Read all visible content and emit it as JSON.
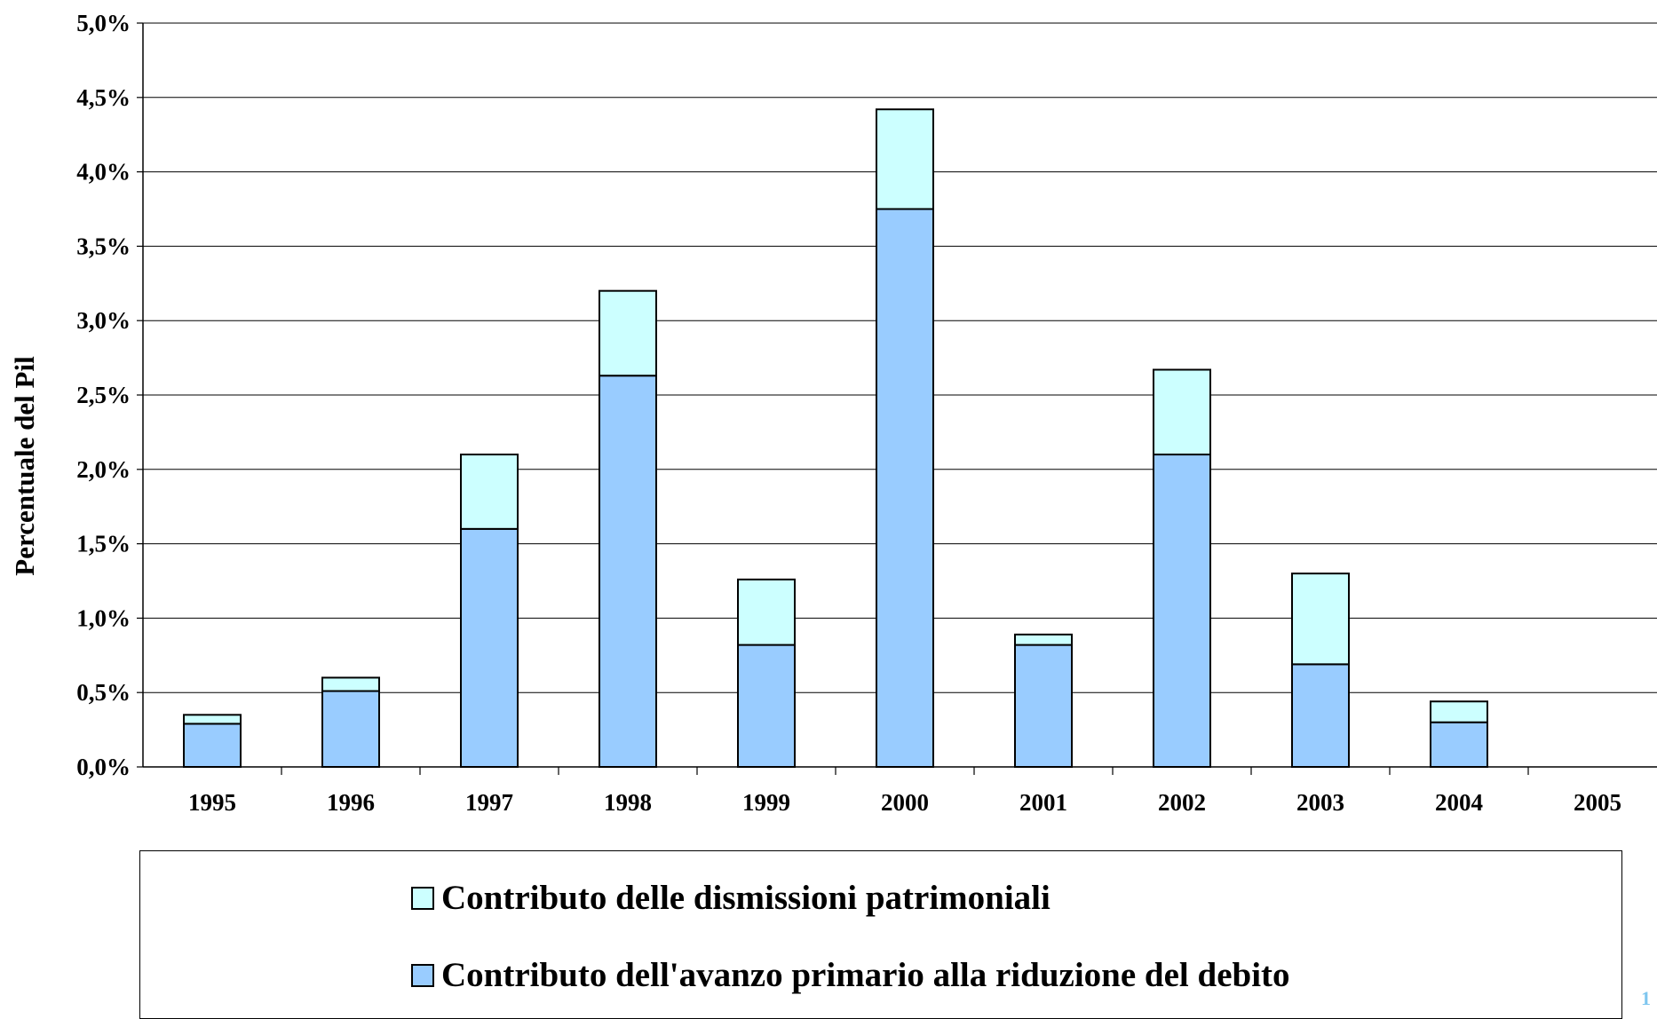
{
  "chart_data": {
    "type": "bar",
    "stacked": true,
    "ylabel": "Percentuale del Pil",
    "xlabel": "",
    "title": "",
    "categories": [
      "1995",
      "1996",
      "1997",
      "1998",
      "1999",
      "2000",
      "2001",
      "2002",
      "2003",
      "2004",
      "2005"
    ],
    "ylim": [
      0,
      5.0
    ],
    "yticks": [
      "0,0%",
      "0,5%",
      "1,0%",
      "1,5%",
      "2,0%",
      "2,5%",
      "3,0%",
      "3,5%",
      "4,0%",
      "4,5%",
      "5,0%"
    ],
    "grid": true,
    "legend_position": "bottom",
    "series": [
      {
        "name": "Contributo dell'avanzo primario alla riduzione del debito",
        "color": "#99ccff",
        "values": [
          0.29,
          0.51,
          1.6,
          2.63,
          0.82,
          3.75,
          0.82,
          2.1,
          0.69,
          0.3,
          0
        ]
      },
      {
        "name": "Contributo delle dismissioni patrimoniali",
        "color": "#ccffff",
        "values": [
          0.06,
          0.09,
          0.5,
          0.57,
          0.44,
          0.67,
          0.07,
          0.57,
          0.61,
          0.14,
          0
        ]
      }
    ]
  },
  "legend": {
    "items": [
      {
        "label": "Contributo delle dismissioni patrimoniali",
        "color": "#ccffff"
      },
      {
        "label": "Contributo dell'avanzo primario alla riduzione del debito",
        "color": "#99ccff"
      }
    ]
  },
  "page_number": "1"
}
